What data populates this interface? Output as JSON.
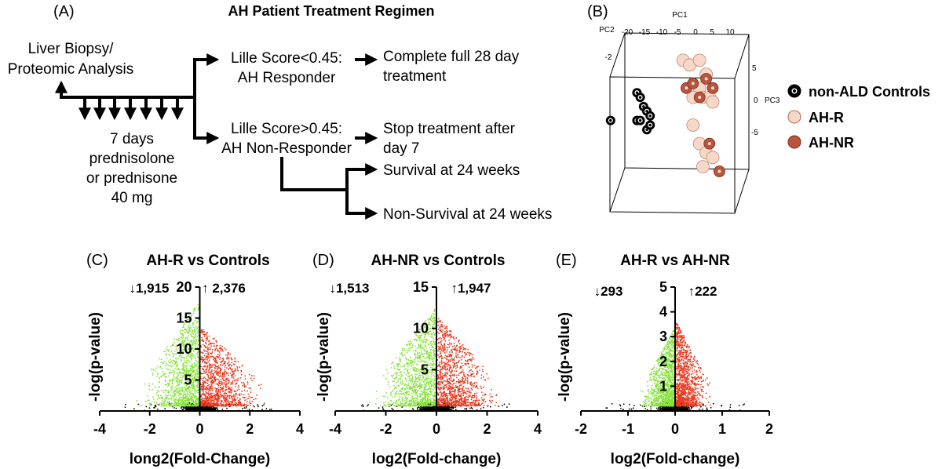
{
  "panelA": {
    "letter": "(A)",
    "title": "AH Patient Treatment Regimen",
    "start": [
      "Liver Biopsy/",
      "Proteomic Analysis"
    ],
    "dosing": [
      "7 days",
      "prednisolone",
      "or prednisone",
      "40 mg"
    ],
    "responder": [
      "Lille Score<0.45:",
      "AH Responder"
    ],
    "responder_outcome": [
      "Complete full 28 day",
      "treatment"
    ],
    "nonresponder": [
      "Lille Score>0.45:",
      "AH Non-Responder"
    ],
    "nonresponder_outcome": [
      "Stop treatment after",
      "day 7"
    ],
    "survival": "Survival at 24 weeks",
    "nonsurvival": "Non-Survival at 24 weeks"
  },
  "panelB": {
    "letter": "(B)",
    "axes": {
      "pc1": "PC1",
      "pc2": "PC2",
      "pc3": "PC3"
    },
    "pc1_ticks": [
      "-20",
      "-15",
      "-10",
      "-5",
      "0",
      "5",
      "10"
    ],
    "pc2_ticks": [
      "-2"
    ],
    "pc3_ticks": [
      "5",
      "0",
      "-5"
    ],
    "legend": [
      {
        "label": "non-ALD Controls",
        "color": "#000000"
      },
      {
        "label": "AH-R",
        "color": "#f6d8c8"
      },
      {
        "label": "AH-NR",
        "color": "#b9553e"
      }
    ]
  },
  "chart_data": [
    {
      "id": "C",
      "letter": "(C)",
      "type": "scatter",
      "title": "AH-R vs Controls",
      "xlabel": "long2(Fold-Change)",
      "ylabel": "-log(p-value)",
      "xlim": [
        -4,
        4
      ],
      "ylim": [
        0,
        20
      ],
      "xticks": [
        -4,
        -2,
        0,
        2,
        4
      ],
      "yticks": [
        5,
        10,
        15,
        20
      ],
      "down_count": "↓1,915",
      "up_count": "↑ 2,376",
      "colors": {
        "down": "#86e33a",
        "up": "#e8391f",
        "ns": "#000000"
      },
      "regions": {
        "down_xmin": -1.8,
        "up_xmax": 2.1,
        "down_ymax": 17,
        "up_ymax": 13
      }
    },
    {
      "id": "D",
      "letter": "(D)",
      "type": "scatter",
      "title": "AH-NR vs Controls",
      "xlabel": "log2(Fold-change)",
      "ylabel": "-log(p-value)",
      "xlim": [
        -4,
        4
      ],
      "ylim": [
        0,
        15
      ],
      "xticks": [
        -4,
        -2,
        0,
        2,
        4
      ],
      "yticks": [
        5,
        10,
        15
      ],
      "down_count": "↓1,513",
      "up_count": "↑1,947",
      "colors": {
        "down": "#86e33a",
        "up": "#e8391f",
        "ns": "#000000"
      },
      "regions": {
        "down_xmin": -1.9,
        "up_xmax": 2.0,
        "down_ymax": 12,
        "up_ymax": 11
      }
    },
    {
      "id": "E",
      "letter": "(E)",
      "type": "scatter",
      "title": "AH-R vs AH-NR",
      "xlabel": "log2(Fold-change)",
      "ylabel": "-log(p-value)",
      "xlim": [
        -2,
        2
      ],
      "ylim": [
        0,
        5
      ],
      "xticks": [
        -2,
        -1,
        0,
        1,
        2
      ],
      "yticks": [
        1,
        2,
        3,
        4,
        5
      ],
      "down_count": "↓293",
      "up_count": "↑222",
      "colors": {
        "down": "#86e33a",
        "up": "#e8391f",
        "ns": "#000000"
      },
      "regions": {
        "down_xmin": -0.55,
        "up_xmax": 0.6,
        "down_ymax": 3.2,
        "up_ymax": 3.5
      }
    },
    {
      "id": "B",
      "type": "scatter",
      "title": "",
      "series": [
        {
          "name": "non-ALD Controls",
          "color": "#000000",
          "points": [
            [
              -13,
              -4
            ],
            [
              -13,
              2
            ],
            [
              -12,
              -4
            ],
            [
              -12,
              1
            ],
            [
              -11,
              -1
            ],
            [
              -10,
              -6
            ],
            [
              -10,
              -2
            ],
            [
              -9,
              -5
            ],
            [
              -9,
              -3
            ],
            [
              -21,
              -4
            ]
          ]
        },
        {
          "name": "AH-R",
          "color": "#f6d8c8",
          "points": [
            [
              1,
              9
            ],
            [
              3,
              8
            ],
            [
              6,
              9
            ],
            [
              8,
              6
            ],
            [
              6,
              3
            ],
            [
              7,
              1
            ],
            [
              4,
              1
            ],
            [
              9,
              1
            ],
            [
              10,
              0
            ],
            [
              4,
              -5
            ],
            [
              6,
              -9
            ],
            [
              8,
              -11
            ],
            [
              10,
              -12
            ],
            [
              7,
              -14
            ]
          ]
        },
        {
          "name": "AH-NR",
          "color": "#b9553e",
          "points": [
            [
              2,
              3
            ],
            [
              4,
              4
            ],
            [
              6,
              1
            ],
            [
              8,
              5
            ],
            [
              10,
              3
            ],
            [
              9,
              -9
            ],
            [
              12,
              -15
            ]
          ]
        }
      ]
    }
  ]
}
